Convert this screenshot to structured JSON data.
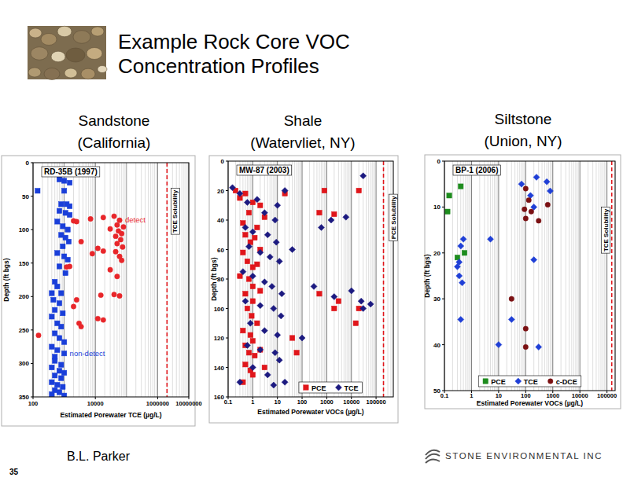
{
  "title": "Example Rock Core VOC\nConcentration Profiles",
  "author": "B.L. Parker",
  "page_number": 35,
  "logo": "STONE ENVIRONMENTAL INC",
  "chart_data": [
    {
      "type": "scatter",
      "title": "Sandstone\n(California)",
      "subtitle": "RD-35B (1997)",
      "x_label": "Estimated Porewater TCE (µg/L)",
      "y_label": "Depth (ft bgs)",
      "log": "x",
      "grid": true,
      "legend": "inline",
      "xlim": [
        100,
        10000000
      ],
      "xticks": [
        100,
        10000,
        1000000,
        10000000
      ],
      "ylim": [
        0,
        350
      ],
      "yticks": [
        0,
        50,
        100,
        150,
        200,
        250,
        300,
        350
      ],
      "reference_line": {
        "value": 2000000,
        "label": "TCE Solubility",
        "color": "#e0161b"
      },
      "series": [
        {
          "name": "non-detect",
          "color": "#1a3fd9",
          "marker": "square",
          "x": [
            1000,
            140,
            700,
            1000,
            1500,
            1000,
            800,
            1200,
            1500,
            700,
            1100,
            1500,
            600,
            900,
            1300,
            800,
            1100,
            1400,
            900,
            600,
            1000,
            1300,
            700,
            1100,
            500,
            600,
            400,
            800,
            450,
            700,
            500,
            900,
            400,
            600,
            800,
            500,
            700,
            1000,
            400,
            600,
            500,
            500,
            800,
            400,
            700,
            1000,
            500,
            800,
            400,
            600,
            900,
            500,
            700,
            400,
            1000
          ],
          "values": [
            285,
            42,
            25,
            27,
            30,
            42,
            62,
            62,
            65,
            72,
            75,
            78,
            88,
            95,
            100,
            108,
            112,
            118,
            125,
            135,
            140,
            145,
            155,
            165,
            178,
            185,
            195,
            195,
            205,
            210,
            220,
            225,
            230,
            240,
            245,
            255,
            262,
            268,
            275,
            280,
            290,
            296,
            302,
            306,
            311,
            314,
            318,
            322,
            328,
            332,
            335,
            340,
            343,
            346,
            348
          ]
        },
        {
          "name": "detect",
          "color": "#e8262a",
          "marker": "circle",
          "x": [
            60000,
            2000,
            2500,
            7000,
            18000,
            40000,
            50000,
            80000,
            30000,
            55000,
            70000,
            45000,
            65000,
            3500,
            50000,
            75000,
            12000,
            18000,
            8000,
            45000,
            60000,
            70000,
            1200,
            1500,
            30000,
            50000,
            15000,
            40000,
            60000,
            2500,
            2000,
            12000,
            18000,
            3000,
            3500,
            150
          ],
          "values": [
            86,
            87,
            88,
            84,
            82,
            80,
            93,
            96,
            99,
            102,
            106,
            110,
            115,
            118,
            121,
            126,
            128,
            132,
            136,
            133,
            140,
            146,
            156,
            155,
            160,
            170,
            198,
            197,
            199,
            205,
            215,
            233,
            235,
            240,
            245,
            258
          ]
        }
      ]
    },
    {
      "type": "scatter",
      "title": "Shale\n(Watervliet, NY)",
      "subtitle": "MW-87 (2003)",
      "x_label": "Estimated Porewater VOCs (µg/L)",
      "y_label": "Depth (ft bgs)",
      "log": "x",
      "grid": true,
      "legend": "bottom",
      "xlim": [
        0.1,
        500000
      ],
      "xticks": [
        0.1,
        1,
        10,
        100,
        1000,
        10000,
        100000
      ],
      "ylim": [
        0,
        160
      ],
      "yticks": [
        0,
        20,
        40,
        60,
        80,
        100,
        120,
        140,
        160
      ],
      "reference_line": {
        "value": 200000,
        "label": "PCE Solubility",
        "color": "#e0161b"
      },
      "series": [
        {
          "name": "PCE",
          "color": "#e0161b",
          "marker": "square",
          "x": [
            0.2,
            0.3,
            0.5,
            1,
            2,
            0.7,
            0.4,
            1.5,
            3,
            0.5,
            0.8,
            1.2,
            2,
            0.4,
            0.6,
            1,
            1.5,
            0.3,
            0.7,
            1,
            2,
            0.5,
            1,
            0.6,
            0.9,
            1.5,
            0.4,
            0.8,
            1,
            0.5,
            0.7,
            1.2,
            2,
            0.5,
            0.8,
            1,
            0.4,
            3,
            20,
            800,
            20000,
            40,
            500,
            2000,
            500,
            3000,
            2000,
            20000,
            15000,
            60
          ],
          "values": [
            20,
            25,
            22,
            28,
            30,
            35,
            42,
            45,
            38,
            50,
            55,
            52,
            60,
            62,
            68,
            72,
            70,
            78,
            80,
            85,
            88,
            90,
            95,
            100,
            105,
            110,
            115,
            118,
            122,
            125,
            130,
            132,
            128,
            138,
            142,
            145,
            150,
            140,
            22,
            20,
            20,
            120,
            35,
            36,
            90,
            95,
            100,
            100,
            110,
            130
          ]
        },
        {
          "name": "TCE",
          "color": "#1c1a80",
          "marker": "diamond",
          "x": [
            0.15,
            0.3,
            0.6,
            1.5,
            3,
            8,
            10,
            0.5,
            1,
            4,
            9,
            20,
            0.7,
            2,
            5,
            12,
            0.4,
            1,
            3,
            6,
            15,
            0.5,
            2,
            7,
            14,
            0.8,
            3,
            10,
            0.6,
            2,
            8,
            12,
            1,
            4,
            0.3,
            7,
            600,
            1500,
            6000,
            30000,
            25000,
            30000,
            300,
            2000,
            10000,
            60000,
            20,
            100,
            40
          ],
          "values": [
            18,
            22,
            28,
            26,
            35,
            40,
            30,
            45,
            48,
            50,
            55,
            20,
            58,
            62,
            65,
            68,
            75,
            78,
            82,
            85,
            90,
            95,
            98,
            100,
            105,
            110,
            115,
            118,
            125,
            128,
            130,
            135,
            140,
            145,
            150,
            152,
            45,
            40,
            38,
            10,
            95,
            100,
            85,
            92,
            88,
            97,
            150,
            120,
            60
          ]
        }
      ]
    },
    {
      "type": "scatter",
      "title": "Siltstone\n(Union, NY)",
      "subtitle": "BP-1 (2006)",
      "x_label": "Estimated Porewater VOCs (µg/L)",
      "y_label": "Depth (ft bgs)",
      "log": "x",
      "grid": true,
      "legend": "bottom",
      "xlim": [
        0.1,
        200000
      ],
      "xticks": [
        0.1,
        1,
        10,
        100,
        1000,
        10000,
        100000
      ],
      "ylim": [
        0,
        50
      ],
      "yticks": [
        0,
        10,
        20,
        30,
        40,
        50
      ],
      "reference_line": {
        "value": 150000,
        "label": "TCE Solubility",
        "color": "#e0161b"
      },
      "series": [
        {
          "name": "PCE",
          "color": "#1e8c1e",
          "marker": "square",
          "x": [
            0.15,
            0.13,
            0.4,
            0.3,
            0.55
          ],
          "values": [
            7.5,
            11,
            5.5,
            21,
            20
          ]
        },
        {
          "name": "TCE",
          "color": "#1f3fd6",
          "marker": "diamond",
          "x": [
            0.5,
            0.4,
            0.35,
            0.3,
            0.35,
            0.45,
            0.4,
            70,
            150,
            200,
            800,
            600,
            5,
            200,
            30,
            10,
            300,
            250
          ],
          "values": [
            17,
            18.5,
            22,
            23,
            25,
            26.5,
            34.5,
            5,
            7.5,
            10,
            6.5,
            4.5,
            17,
            21.5,
            34.5,
            40,
            40.5,
            3.5
          ]
        },
        {
          "name": "c-DCE",
          "color": "#7b1113",
          "marker": "circle",
          "x": [
            100,
            130,
            90,
            100,
            160,
            650,
            300,
            100,
            100,
            30
          ],
          "values": [
            6,
            8.5,
            10.5,
            12.5,
            11,
            9.5,
            13,
            36.5,
            40.5,
            30
          ]
        }
      ]
    }
  ]
}
